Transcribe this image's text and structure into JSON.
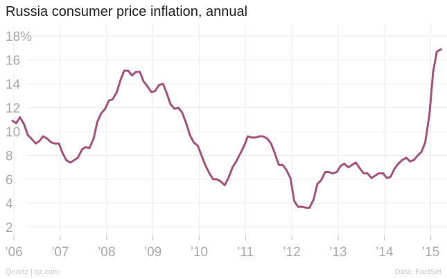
{
  "header": {
    "title": "Russia consumer price inflation, annual"
  },
  "footer": {
    "source_left": "Quartz | qz.com",
    "source_right": "Data: FactSet"
  },
  "chart_data": {
    "type": "line",
    "title": "Russia consumer price inflation, annual",
    "xlabel": "",
    "ylabel": "",
    "ylim": [
      1,
      19
    ],
    "yticks": [
      2,
      4,
      6,
      8,
      10,
      12,
      14,
      16,
      18
    ],
    "ytick_labels": [
      "2",
      "4",
      "6",
      "8",
      "10",
      "12",
      "14",
      "16",
      "18%"
    ],
    "xticks": [
      2006,
      2007,
      2008,
      2009,
      2010,
      2011,
      2012,
      2013,
      2014,
      2015
    ],
    "xtick_labels": [
      "’06",
      "’07",
      "’08",
      "’09",
      "’10",
      "’11",
      "’12",
      "’13",
      "’14",
      "’15"
    ],
    "xlim": [
      2005.7,
      2015.35
    ],
    "grid": true,
    "legend": "none",
    "line_color": "#a8507f",
    "series": [
      {
        "values": [
          [
            2005.97,
            10.9
          ],
          [
            2006.05,
            10.7
          ],
          [
            2006.13,
            11.2
          ],
          [
            2006.22,
            10.6
          ],
          [
            2006.3,
            9.7
          ],
          [
            2006.38,
            9.4
          ],
          [
            2006.47,
            9.0
          ],
          [
            2006.55,
            9.2
          ],
          [
            2006.63,
            9.6
          ],
          [
            2006.72,
            9.4
          ],
          [
            2006.8,
            9.1
          ],
          [
            2006.88,
            9.0
          ],
          [
            2006.97,
            9.0
          ],
          [
            2007.05,
            8.2
          ],
          [
            2007.13,
            7.6
          ],
          [
            2007.22,
            7.4
          ],
          [
            2007.3,
            7.6
          ],
          [
            2007.38,
            7.8
          ],
          [
            2007.47,
            8.5
          ],
          [
            2007.55,
            8.7
          ],
          [
            2007.63,
            8.6
          ],
          [
            2007.72,
            9.4
          ],
          [
            2007.8,
            10.8
          ],
          [
            2007.88,
            11.5
          ],
          [
            2007.97,
            11.9
          ],
          [
            2008.05,
            12.6
          ],
          [
            2008.13,
            12.7
          ],
          [
            2008.22,
            13.3
          ],
          [
            2008.3,
            14.3
          ],
          [
            2008.38,
            15.1
          ],
          [
            2008.47,
            15.1
          ],
          [
            2008.55,
            14.7
          ],
          [
            2008.63,
            15.0
          ],
          [
            2008.72,
            15.0
          ],
          [
            2008.8,
            14.2
          ],
          [
            2008.88,
            13.8
          ],
          [
            2008.97,
            13.3
          ],
          [
            2009.05,
            13.4
          ],
          [
            2009.13,
            13.9
          ],
          [
            2009.22,
            14.0
          ],
          [
            2009.3,
            13.2
          ],
          [
            2009.38,
            12.3
          ],
          [
            2009.47,
            11.9
          ],
          [
            2009.55,
            12.0
          ],
          [
            2009.63,
            11.6
          ],
          [
            2009.72,
            10.7
          ],
          [
            2009.8,
            9.7
          ],
          [
            2009.88,
            9.1
          ],
          [
            2009.97,
            8.8
          ],
          [
            2010.05,
            8.0
          ],
          [
            2010.13,
            7.2
          ],
          [
            2010.22,
            6.5
          ],
          [
            2010.3,
            6.0
          ],
          [
            2010.38,
            6.0
          ],
          [
            2010.47,
            5.8
          ],
          [
            2010.55,
            5.5
          ],
          [
            2010.63,
            6.1
          ],
          [
            2010.72,
            7.0
          ],
          [
            2010.8,
            7.5
          ],
          [
            2010.88,
            8.1
          ],
          [
            2010.97,
            8.8
          ],
          [
            2011.05,
            9.6
          ],
          [
            2011.13,
            9.5
          ],
          [
            2011.22,
            9.5
          ],
          [
            2011.3,
            9.6
          ],
          [
            2011.38,
            9.6
          ],
          [
            2011.47,
            9.4
          ],
          [
            2011.55,
            9.0
          ],
          [
            2011.63,
            8.2
          ],
          [
            2011.72,
            7.2
          ],
          [
            2011.8,
            7.2
          ],
          [
            2011.88,
            6.8
          ],
          [
            2011.97,
            6.1
          ],
          [
            2012.05,
            4.2
          ],
          [
            2012.13,
            3.7
          ],
          [
            2012.22,
            3.7
          ],
          [
            2012.3,
            3.6
          ],
          [
            2012.38,
            3.6
          ],
          [
            2012.47,
            4.3
          ],
          [
            2012.55,
            5.6
          ],
          [
            2012.63,
            5.9
          ],
          [
            2012.72,
            6.6
          ],
          [
            2012.8,
            6.6
          ],
          [
            2012.88,
            6.5
          ],
          [
            2012.97,
            6.6
          ],
          [
            2013.05,
            7.1
          ],
          [
            2013.13,
            7.3
          ],
          [
            2013.22,
            7.0
          ],
          [
            2013.3,
            7.2
          ],
          [
            2013.38,
            7.4
          ],
          [
            2013.47,
            6.9
          ],
          [
            2013.55,
            6.5
          ],
          [
            2013.63,
            6.5
          ],
          [
            2013.72,
            6.1
          ],
          [
            2013.8,
            6.3
          ],
          [
            2013.88,
            6.5
          ],
          [
            2013.97,
            6.5
          ],
          [
            2014.05,
            6.1
          ],
          [
            2014.13,
            6.2
          ],
          [
            2014.22,
            6.9
          ],
          [
            2014.3,
            7.3
          ],
          [
            2014.38,
            7.6
          ],
          [
            2014.47,
            7.8
          ],
          [
            2014.55,
            7.5
          ],
          [
            2014.63,
            7.6
          ],
          [
            2014.72,
            8.0
          ],
          [
            2014.8,
            8.3
          ],
          [
            2014.88,
            9.1
          ],
          [
            2014.97,
            11.4
          ],
          [
            2015.05,
            15.0
          ],
          [
            2015.13,
            16.7
          ],
          [
            2015.22,
            16.9
          ]
        ]
      }
    ]
  }
}
